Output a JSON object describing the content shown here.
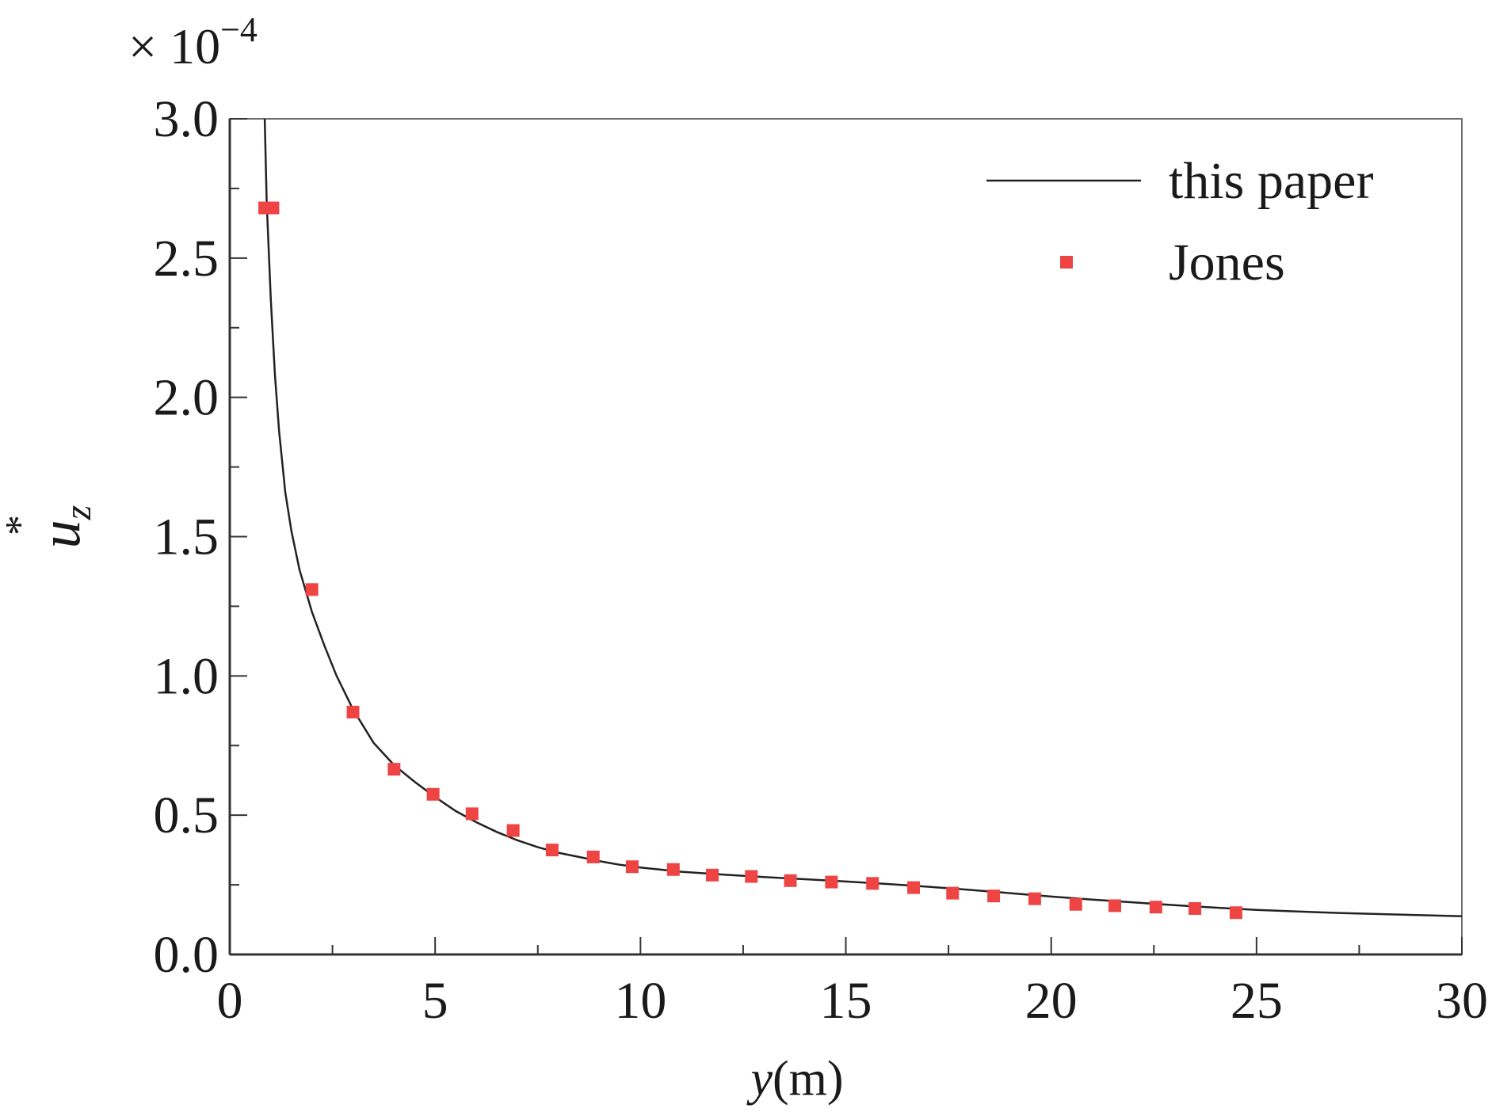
{
  "chart_data": {
    "type": "line",
    "title": "",
    "xlabel_var": "y",
    "xlabel_unit": "(m)",
    "ylabel_var": "u",
    "ylabel_sub": "z",
    "ylabel_sup": "*",
    "y_multiplier": "× 10",
    "y_multiplier_exp": "−4",
    "xlim": [
      0,
      30
    ],
    "ylim": [
      0,
      3.0
    ],
    "xticks": [
      0,
      5,
      10,
      15,
      20,
      25,
      30
    ],
    "xtick_labels": [
      "0",
      "5",
      "10",
      "15",
      "20",
      "25",
      "30"
    ],
    "yticks": [
      0,
      0.5,
      1.0,
      1.5,
      2.0,
      2.5,
      3.0
    ],
    "ytick_labels": [
      "0.0",
      "0.5",
      "1.0",
      "1.5",
      "2.0",
      "2.5",
      "3.0"
    ],
    "grid": false,
    "legend_position": "top-right",
    "series": [
      {
        "name": "this paper",
        "kind": "line",
        "color": "#222222",
        "x": [
          0.85,
          0.9,
          1.0,
          1.1,
          1.2,
          1.35,
          1.5,
          1.7,
          2.0,
          2.3,
          2.6,
          3.0,
          3.5,
          4.0,
          4.5,
          5.0,
          5.5,
          6.0,
          6.5,
          7.0,
          7.5,
          8.0,
          8.5,
          9.0,
          9.5,
          10.0,
          11.0,
          12.0,
          13.0,
          14.0,
          15.0,
          16.0,
          17.0,
          18.0,
          19.0,
          20.0,
          21.0,
          22.0,
          23.0,
          24.0,
          25.0,
          26.0,
          27.0,
          28.0,
          29.0,
          30.0
        ],
        "y": [
          3.0,
          2.7,
          2.35,
          2.08,
          1.88,
          1.66,
          1.52,
          1.38,
          1.23,
          1.11,
          1.0,
          0.88,
          0.76,
          0.68,
          0.62,
          0.565,
          0.515,
          0.475,
          0.44,
          0.41,
          0.385,
          0.365,
          0.35,
          0.335,
          0.322,
          0.312,
          0.297,
          0.287,
          0.278,
          0.27,
          0.262,
          0.253,
          0.243,
          0.232,
          0.22,
          0.208,
          0.197,
          0.187,
          0.177,
          0.168,
          0.16,
          0.154,
          0.149,
          0.145,
          0.141,
          0.137
        ]
      },
      {
        "name": "Jones",
        "kind": "scatter",
        "color": "#ee4444",
        "x": [
          0.85,
          1.05,
          2.0,
          3.0,
          4.0,
          4.95,
          5.9,
          6.9,
          7.85,
          8.85,
          9.8,
          10.8,
          11.75,
          12.7,
          13.65,
          14.65,
          15.65,
          16.65,
          17.6,
          18.6,
          19.6,
          20.6,
          21.55,
          22.55,
          23.5,
          24.5
        ],
        "y": [
          2.68,
          2.68,
          1.31,
          0.87,
          0.665,
          0.575,
          0.505,
          0.445,
          0.375,
          0.35,
          0.315,
          0.305,
          0.285,
          0.28,
          0.265,
          0.26,
          0.255,
          0.24,
          0.22,
          0.21,
          0.2,
          0.18,
          0.175,
          0.17,
          0.165,
          0.15
        ]
      }
    ]
  }
}
